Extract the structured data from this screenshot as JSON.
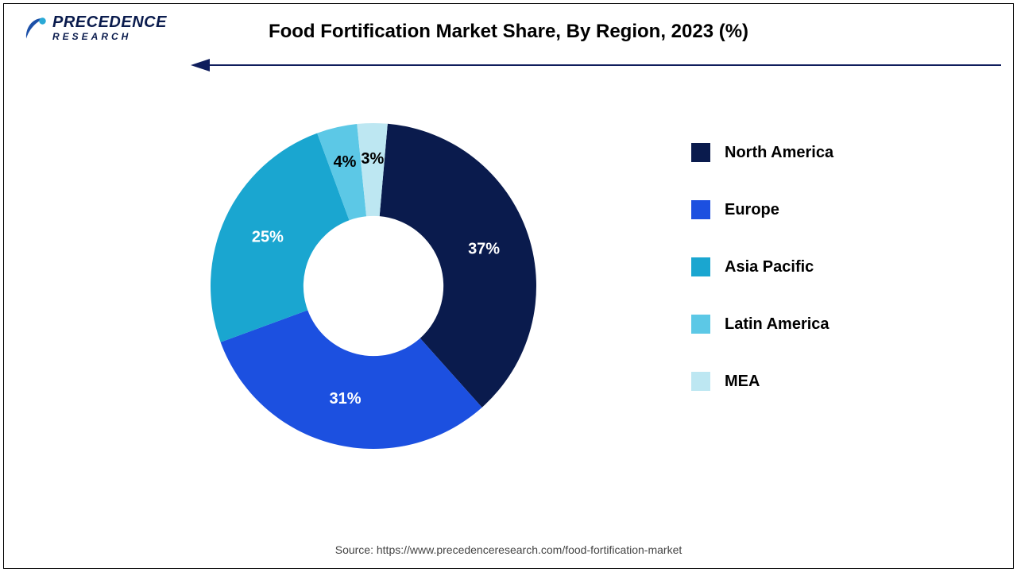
{
  "logo": {
    "word1": "PRECEDENCE",
    "word2": "RESEARCH",
    "icon_color": "#1c50a8",
    "highlight_color": "#2aa9d6"
  },
  "title": {
    "text": "Food Fortification Market Share, By Region, 2023 (%)",
    "fontsize": 24,
    "color": "#000000"
  },
  "divider": {
    "line_color": "#0f1d5c",
    "arrow_fill": "#0f1d5c"
  },
  "chart": {
    "type": "donut",
    "inner_radius_ratio": 0.43,
    "start_angle_deg": 5,
    "background_color": "#ffffff",
    "label_fontsize": 20,
    "label_fontweight": "700",
    "slices": [
      {
        "label": "North America",
        "value": 37,
        "display": "37%",
        "color": "#0a1b4d",
        "label_color": "#ffffff"
      },
      {
        "label": "Europe",
        "value": 31,
        "display": "31%",
        "color": "#1c50e0",
        "label_color": "#ffffff"
      },
      {
        "label": "Asia Pacific",
        "value": 25,
        "display": "25%",
        "color": "#1aa6d0",
        "label_color": "#ffffff"
      },
      {
        "label": "Latin America",
        "value": 4,
        "display": "4%",
        "color": "#5cc8e6",
        "label_color": "#000000"
      },
      {
        "label": "MEA",
        "value": 3,
        "display": "3%",
        "color": "#bde7f2",
        "label_color": "#000000"
      }
    ]
  },
  "legend": {
    "fontsize": 20,
    "fontweight": "700",
    "swatch_size": 24,
    "row_gap": 48
  },
  "source": {
    "text": "Source: https://www.precedenceresearch.com/food-fortification-market",
    "fontsize": 14,
    "color": "#444444"
  }
}
